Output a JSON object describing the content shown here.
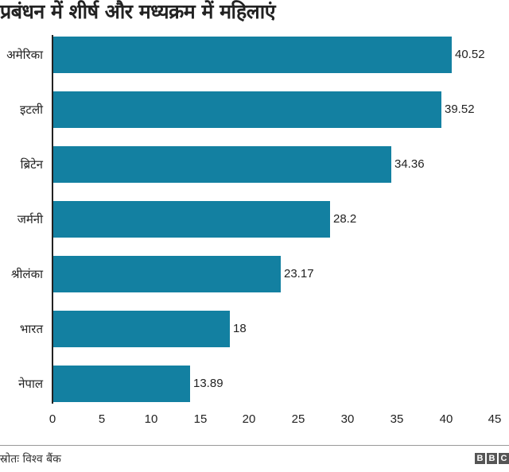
{
  "title": "प्रबंधन में शीर्ष और मध्यक्रम में महिलाएं",
  "source": "स्रोतः विश्व बैंक",
  "logo": [
    "B",
    "B",
    "C"
  ],
  "colors": {
    "bar": "#1380A1",
    "text": "#222222",
    "axis": "#222222"
  },
  "chart_data": {
    "type": "bar",
    "orientation": "horizontal",
    "title": "प्रबंधन में शीर्ष और मध्यक्रम में महिलाएं",
    "categories": [
      "अमेरिका",
      "इटली",
      "ब्रिटेन",
      "जर्मनी",
      "श्रीलंका",
      "भारत",
      "नेपाल"
    ],
    "values": [
      40.52,
      39.52,
      34.36,
      28.2,
      23.17,
      18,
      13.89
    ],
    "value_labels": [
      "40.52",
      "39.52",
      "34.36",
      "28.2",
      "23.17",
      "18",
      "13.89"
    ],
    "xlabel": "",
    "ylabel": "",
    "xlim": [
      0,
      45
    ],
    "xticks": [
      "0",
      "5",
      "10",
      "15",
      "20",
      "25",
      "30",
      "35",
      "40",
      "45"
    ],
    "grid": false,
    "legend": null,
    "source": "स्रोतः विश्व बैंक"
  }
}
